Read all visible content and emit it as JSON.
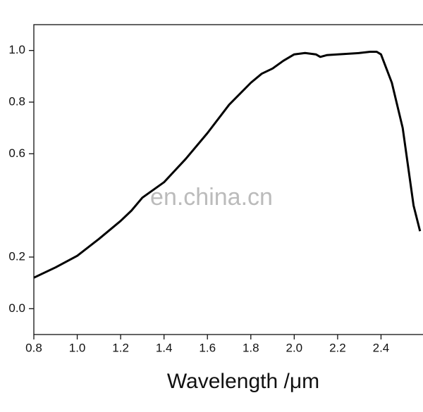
{
  "chart_data": {
    "type": "line",
    "x_label": "Wavelength /μm",
    "watermark": "en.china.cn",
    "x": [
      0.8,
      0.9,
      1.0,
      1.1,
      1.2,
      1.25,
      1.3,
      1.4,
      1.5,
      1.6,
      1.7,
      1.8,
      1.85,
      1.9,
      1.95,
      2.0,
      2.05,
      2.1,
      2.12,
      2.15,
      2.2,
      2.3,
      2.35,
      2.38,
      2.4,
      2.45,
      2.5,
      2.55,
      2.58
    ],
    "series": [
      {
        "color": "#000000",
        "values": [
          0.12,
          0.16,
          0.205,
          0.27,
          0.34,
          0.38,
          0.43,
          0.49,
          0.58,
          0.68,
          0.79,
          0.875,
          0.91,
          0.93,
          0.96,
          0.985,
          0.99,
          0.985,
          0.975,
          0.982,
          0.985,
          0.99,
          0.995,
          0.995,
          0.985,
          0.875,
          0.7,
          0.4,
          0.3
        ]
      }
    ],
    "xlim": [
      0.8,
      2.6
    ],
    "xticks": [
      0.8,
      1.0,
      1.2,
      1.4,
      1.6,
      1.8,
      2.0,
      2.2,
      2.4
    ],
    "ylim": [
      -0.1,
      1.1
    ],
    "yticks": [
      0.0,
      0.2,
      0.6,
      0.8,
      1.0
    ],
    "grid": false
  }
}
